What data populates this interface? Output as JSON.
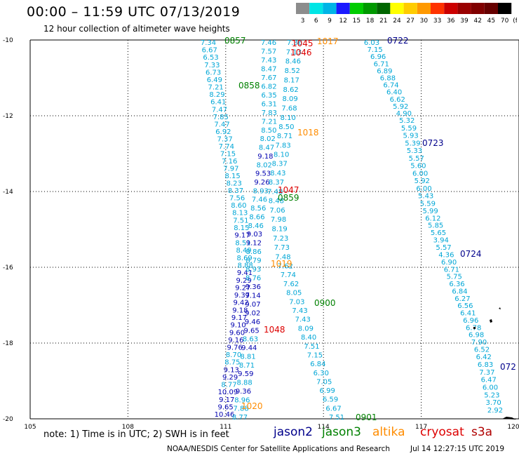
{
  "header": {
    "title": "00:00 – 11:59 UTC 07/13/2019",
    "subtitle": "12 hour collection of altimeter wave heights"
  },
  "legend": {
    "unit": "(ft)",
    "bins": [
      {
        "label": "3",
        "color": "#8c8c8c"
      },
      {
        "label": "6",
        "color": "#00e5e5"
      },
      {
        "label": "9",
        "color": "#00b4e6"
      },
      {
        "label": "12",
        "color": "#1a1aff"
      },
      {
        "label": "15",
        "color": "#00cc00"
      },
      {
        "label": "18",
        "color": "#009900"
      },
      {
        "label": "21",
        "color": "#006600"
      },
      {
        "label": "24",
        "color": "#ffff00"
      },
      {
        "label": "27",
        "color": "#ffcc00"
      },
      {
        "label": "30",
        "color": "#ff9900"
      },
      {
        "label": "33",
        "color": "#ff3300"
      },
      {
        "label": "36",
        "color": "#cc0000"
      },
      {
        "label": "39",
        "color": "#990000"
      },
      {
        "label": "42",
        "color": "#800000"
      },
      {
        "label": "45",
        "color": "#660000"
      },
      {
        "label": "70",
        "color": "#000000"
      }
    ]
  },
  "axes": {
    "lat_labels": [
      "-10",
      "-12",
      "-14",
      "-16",
      "-18",
      "-20"
    ],
    "lon_labels": [
      "105",
      "108",
      "111",
      "114",
      "117",
      "120"
    ]
  },
  "colors": {
    "jason2": "#00008b",
    "jason3": "#008000",
    "altika": "#ff8c00",
    "cryosat": "#dd0000",
    "s3a": "#b00000",
    "swh_low": "#00a6d6",
    "swh_mid": "#0000b0"
  },
  "passes": [
    {
      "label": "0857",
      "sat": "jason3"
    },
    {
      "label": "0858",
      "sat": "jason3"
    },
    {
      "label": "0859",
      "sat": "jason3"
    },
    {
      "label": "0900",
      "sat": "jason3"
    },
    {
      "label": "0901",
      "sat": "jason3"
    },
    {
      "label": "1017",
      "sat": "altika"
    },
    {
      "label": "1018",
      "sat": "altika"
    },
    {
      "label": "1019",
      "sat": "altika"
    },
    {
      "label": "1020",
      "sat": "altika"
    },
    {
      "label": "1045",
      "sat": "cryosat"
    },
    {
      "label": "1046",
      "sat": "cryosat"
    },
    {
      "label": "1047",
      "sat": "cryosat"
    },
    {
      "label": "1048",
      "sat": "cryosat"
    },
    {
      "label": "0722",
      "sat": "jason2"
    },
    {
      "label": "0723",
      "sat": "jason2"
    },
    {
      "label": "0724",
      "sat": "jason2"
    },
    {
      "label": "072",
      "sat": "jason2"
    }
  ],
  "tracks": {
    "t1": [
      "7.34",
      "6.67",
      "6.53",
      "7.33",
      "6.73",
      "6.49",
      "7.21",
      "8.29",
      "6.41",
      "7.47",
      "7.85",
      "7.47",
      "6.92",
      "7.37",
      "7.74",
      "7.15",
      "7.16",
      "7.97",
      "8.15",
      "8.23",
      "8.37",
      "7.56",
      "8.60",
      "8.13",
      "7.51",
      "8.15",
      "9.17",
      "8.51",
      "8.49",
      "8.69",
      "8.88",
      "9.41",
      "9.29",
      "9.27",
      "9.37",
      "9.42",
      "9.18",
      "9.17",
      "9.10",
      "9.60",
      "9.16",
      "9.76",
      "8.70",
      "8.75",
      "9.13",
      "9.29",
      "8.77",
      "10.09",
      "9.17",
      "9.65",
      "10.46"
    ],
    "t2": [
      "7.46",
      "7.57",
      "7.43",
      "8.47",
      "7.67",
      "6.82",
      "6.35",
      "6.31",
      "7.83",
      "7.21",
      "8.50",
      "8.02",
      "8.47",
      "9.18",
      "8.02",
      "9.53",
      "9.26",
      "8.93",
      "7.46",
      "8.56",
      "8.66",
      "8.46",
      "9.03",
      "9.12",
      "8.86",
      "8.79",
      "8.93",
      "8.76",
      "9.36",
      "9.14",
      "9.07",
      "9.02",
      "9.46",
      "9.65",
      "8.63",
      "9.44",
      "8.81",
      "8.71",
      "9.59",
      "8.88",
      "9.36",
      "8.96",
      "7.88",
      "8.77"
    ],
    "t3": [
      "7.36",
      "7.13",
      "8.46",
      "8.52",
      "8.17",
      "8.62",
      "8.09",
      "7.68",
      "8.10",
      "8.50",
      "8.71",
      "7.83",
      "8.10",
      "8.37",
      "8.43",
      "8.37",
      "7.48",
      "8.48",
      "7.06",
      "7.98",
      "8.19",
      "7.23",
      "7.73",
      "7.48",
      "7.62",
      "7.74",
      "7.62",
      "8.05",
      "7.03",
      "7.43",
      "7.43",
      "8.09",
      "8.40",
      "7.51",
      "7.15",
      "6.84",
      "6.30",
      "7.05",
      "6.99",
      "6.59",
      "6.67",
      "7.51"
    ],
    "t4": [
      "6.03",
      "7.15",
      "6.96",
      "6.71",
      "6.89",
      "6.88",
      "6.74",
      "6.40",
      "6.62",
      "5.92",
      "4.90",
      "5.32",
      "5.59",
      "5.93",
      "5.39",
      "5.33",
      "5.57",
      "5.60",
      "6.00",
      "5.92",
      "6.00",
      "5.43",
      "5.59",
      "5.99",
      "6.12",
      "5.85",
      "5.65",
      "3.94",
      "5.57",
      "4.36",
      "6.90",
      "6.71",
      "5.75",
      "6.36",
      "6.84",
      "6.27",
      "6.56",
      "6.41",
      "6.96",
      "6.78",
      "6.98",
      "7.90",
      "6.52",
      "6.42",
      "6.83",
      "7.37",
      "6.47",
      "6.00",
      "5.23",
      "3.70",
      "2.92"
    ]
  },
  "footer": {
    "note": "note:  1) Time is in UTC;  2) SWH is in feet",
    "sats": [
      {
        "name": "jason2",
        "key": "jason2"
      },
      {
        "name": "jason3",
        "key": "jason3"
      },
      {
        "name": "altika",
        "key": "altika"
      },
      {
        "name": "cryosat",
        "key": "cryosat"
      },
      {
        "name": "s3a",
        "key": "s3a"
      }
    ],
    "credit": "NOAA/NESDIS Center for Satellite Applications and Research",
    "timestamp": "Jul 14 12:27:15 UTC 2019"
  }
}
